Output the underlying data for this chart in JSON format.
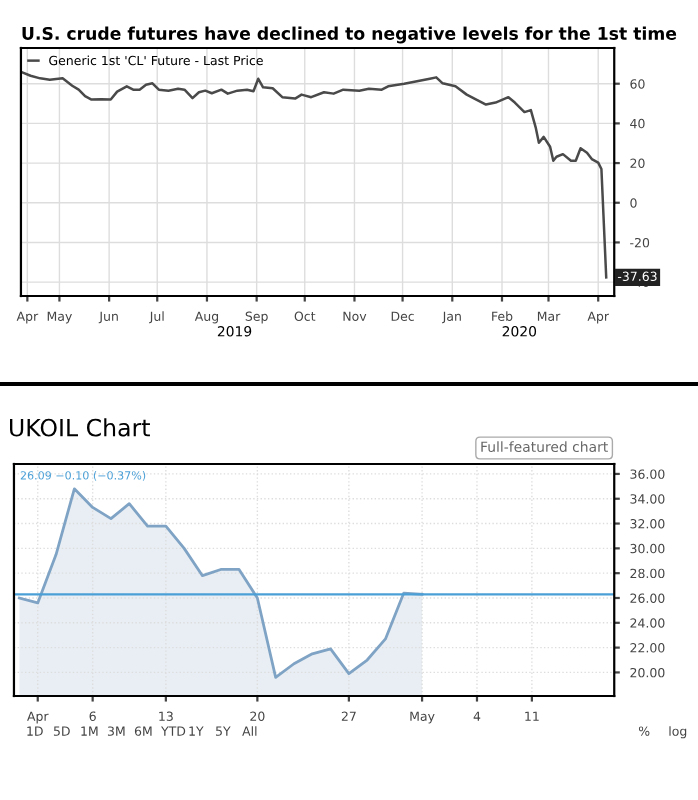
{
  "chart_data": [
    {
      "type": "line",
      "title": "U.S. crude futures have declined to negative levels for the 1st time",
      "legend": "top left",
      "grid": true,
      "marker": "none",
      "line_style": "solid",
      "series": [
        {
          "name": "Generic 1st 'CL' Future - Last Price",
          "color": "#4a4a4a",
          "x": [
            "2019-04-21",
            "2019-04-27",
            "2019-05-03",
            "2019-05-09",
            "2019-05-17",
            "2019-05-23",
            "2019-05-27",
            "2019-05-31",
            "2019-06-04",
            "2019-06-10",
            "2019-06-16",
            "2019-06-20",
            "2019-06-26",
            "2019-06-30",
            "2019-07-04",
            "2019-07-08",
            "2019-07-12",
            "2019-07-16",
            "2019-07-22",
            "2019-07-28",
            "2019-08-01",
            "2019-08-06",
            "2019-08-10",
            "2019-08-14",
            "2019-08-18",
            "2019-08-24",
            "2019-08-28",
            "2019-09-03",
            "2019-09-09",
            "2019-09-13",
            "2019-09-16",
            "2019-09-19",
            "2019-09-25",
            "2019-10-01",
            "2019-10-09",
            "2019-10-13",
            "2019-10-19",
            "2019-10-27",
            "2019-11-02",
            "2019-11-08",
            "2019-11-18",
            "2019-11-24",
            "2019-12-02",
            "2019-12-06",
            "2019-12-16",
            "2019-12-24",
            "2020-01-01",
            "2020-01-05",
            "2020-01-09",
            "2020-01-17",
            "2020-01-24",
            "2020-01-30",
            "2020-02-05",
            "2020-02-11",
            "2020-02-19",
            "2020-02-23",
            "2020-02-29",
            "2020-03-04",
            "2020-03-07",
            "2020-03-09",
            "2020-03-12",
            "2020-03-16",
            "2020-03-18",
            "2020-03-20",
            "2020-03-24",
            "2020-03-29",
            "2020-04-01",
            "2020-04-04",
            "2020-04-08",
            "2020-04-11",
            "2020-04-15",
            "2020-04-17",
            "2020-04-20"
          ],
          "values": [
            66,
            64,
            62.7,
            62,
            62.7,
            59,
            57,
            53.7,
            52,
            52.2,
            52,
            56,
            58.7,
            57,
            57,
            59.5,
            60.2,
            57,
            56.5,
            57.5,
            57,
            52.7,
            55.7,
            56.5,
            55.2,
            57,
            55,
            56.5,
            57,
            56.2,
            62.5,
            58.2,
            57.7,
            53.2,
            52.5,
            54.5,
            53.2,
            55.7,
            55,
            57,
            56.5,
            57.5,
            57,
            58.7,
            60,
            61.2,
            62.5,
            63.2,
            60.2,
            58.7,
            54.5,
            52,
            49.5,
            50.5,
            53.2,
            50.5,
            45.7,
            46.7,
            38,
            30.2,
            33.2,
            28.2,
            21.2,
            23.2,
            24.5,
            21.2,
            21.2,
            27.5,
            25.2,
            22,
            20.2,
            17,
            -37.63
          ]
        }
      ],
      "xlim": [
        "2019-04-21",
        "2020-04-25"
      ],
      "xticks": [
        {
          "value": "2019-04-25",
          "label": "Apr"
        },
        {
          "value": "2019-05-15",
          "label": "May"
        },
        {
          "value": "2019-06-15",
          "label": "Jun"
        },
        {
          "value": "2019-07-15",
          "label": "Jul"
        },
        {
          "value": "2019-08-15",
          "label": "Aug"
        },
        {
          "value": "2019-09-15",
          "label": "Sep"
        },
        {
          "value": "2019-10-15",
          "label": "Oct"
        },
        {
          "value": "2019-11-15",
          "label": "Nov"
        },
        {
          "value": "2019-12-15",
          "label": "Dec"
        },
        {
          "value": "2020-01-15",
          "label": "Jan"
        },
        {
          "value": "2020-02-15",
          "label": "Feb"
        },
        {
          "value": "2020-03-15",
          "label": "Mar"
        },
        {
          "value": "2020-04-15",
          "label": "Apr"
        }
      ],
      "ylim": [
        -47,
        78
      ],
      "yticks": [
        60,
        40,
        20,
        0,
        -20,
        -40
      ],
      "annotations": [
        {
          "text": "-37.63",
          "x": "2020-04-20",
          "y": -37.63
        },
        "2019",
        "2020"
      ]
    },
    {
      "type": "area",
      "title": "UKOIL Chart",
      "grid": true,
      "marker": "none",
      "line_style": "solid",
      "categories": [
        null,
        "Apr",
        null,
        null,
        "6",
        null,
        null,
        null,
        "13",
        null,
        null,
        null,
        null,
        "20",
        null,
        null,
        null,
        null,
        "27",
        null,
        null,
        null,
        "May",
        null,
        null,
        "4",
        null,
        null,
        "11",
        null,
        null,
        null,
        null
      ],
      "series": [
        {
          "color": "#7fa3c4",
          "values": [
            26.0,
            25.6,
            29.5,
            34.8,
            33.3,
            32.4,
            33.6,
            31.8,
            31.8,
            30.0,
            27.8,
            28.3,
            28.3,
            26.0,
            19.6,
            20.7,
            21.5,
            21.9,
            19.9,
            21.0,
            22.7,
            26.4,
            26.3,
            null,
            null,
            null,
            null,
            null,
            null,
            null,
            null,
            null,
            null
          ]
        }
      ],
      "ylim": [
        18.1,
        36.8
      ],
      "yticks": [
        {
          "value": 20,
          "label": "20.00"
        },
        {
          "value": 22,
          "label": "22.00"
        },
        {
          "value": 24,
          "label": "24.00"
        },
        {
          "value": 26,
          "label": "26.00"
        },
        {
          "value": 28,
          "label": "28.00"
        },
        {
          "value": 30,
          "label": "30.00"
        },
        {
          "value": 32,
          "label": "32.00"
        },
        {
          "value": 34,
          "label": "34.00"
        },
        {
          "value": 36,
          "label": "36.00"
        }
      ],
      "ref_lines": [
        {
          "axis": "y",
          "value": 26.3,
          "color": "#4a9fd6"
        }
      ],
      "annotations": [
        "Full-featured chart",
        "26.09 −0.10 (−0.37%)",
        "1D",
        "5D",
        "1M",
        "3M",
        "6M",
        "YTD",
        "1Y",
        "5Y",
        "All",
        "%",
        "log"
      ]
    }
  ]
}
